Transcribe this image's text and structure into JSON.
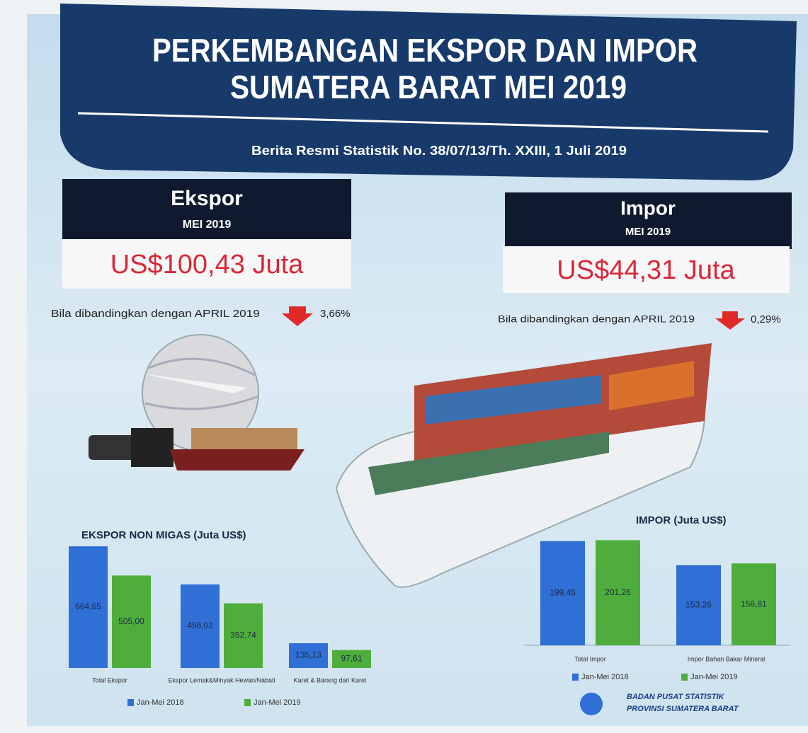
{
  "header": {
    "title_line1": "PERKEMBANGAN EKSPOR DAN IMPOR",
    "title_line2": "SUMATERA BARAT MEI 2019",
    "subtitle": "Berita Resmi Statistik No. 38/07/13/Th. XXIII, 1 Juli 2019"
  },
  "ekspor": {
    "label": "Ekspor",
    "period": "MEI 2019",
    "amount": "US$100,43 Juta",
    "comparison": "Bila dibandingkan dengan APRIL 2019",
    "change": "3,66%"
  },
  "impor": {
    "label": "Impor",
    "period": "MEI 2019",
    "amount": "US$44,31 Juta",
    "comparison": "Bila dibandingkan dengan APRIL 2019",
    "change": "0,29%"
  },
  "footer": {
    "agency_line1": "BADAN PUSAT STATISTIK",
    "agency_line2": "PROVINSI SUMATERA BARAT"
  },
  "chart_data": [
    {
      "type": "bar",
      "title": "EKSPOR NON MIGAS (Juta US$)",
      "categories": [
        "Total Ekspor",
        "Ekspor Lemak&Minyak Hewan/Nabati",
        "Karet & Barang dari Karet"
      ],
      "series": [
        {
          "name": "Jan-Mei 2018",
          "color": "#2f6fd6",
          "values": [
            664.65,
            456.02,
            135.13
          ],
          "value_labels": [
            "664,65",
            "456,02",
            "135,13"
          ]
        },
        {
          "name": "Jan-Mei 2019",
          "color": "#4fae3b",
          "values": [
            505.0,
            352.74,
            97.61
          ],
          "value_labels": [
            "505,00",
            "352,74",
            "97,61"
          ]
        }
      ],
      "ylim": [
        0,
        700
      ]
    },
    {
      "type": "bar",
      "title": "IMPOR (Juta US$)",
      "categories": [
        "Total Impor",
        "Impor Bahan Bakar Mineral"
      ],
      "series": [
        {
          "name": "Jan-Mei 2018",
          "color": "#2f6fd6",
          "values": [
            199.45,
            153.26
          ],
          "value_labels": [
            "199,45",
            "153,26"
          ]
        },
        {
          "name": "Jan-Mei 2019",
          "color": "#4fae3b",
          "values": [
            201.26,
            156.81
          ],
          "value_labels": [
            "201,26",
            "156,81"
          ]
        }
      ],
      "ylim": [
        0,
        210
      ]
    }
  ]
}
